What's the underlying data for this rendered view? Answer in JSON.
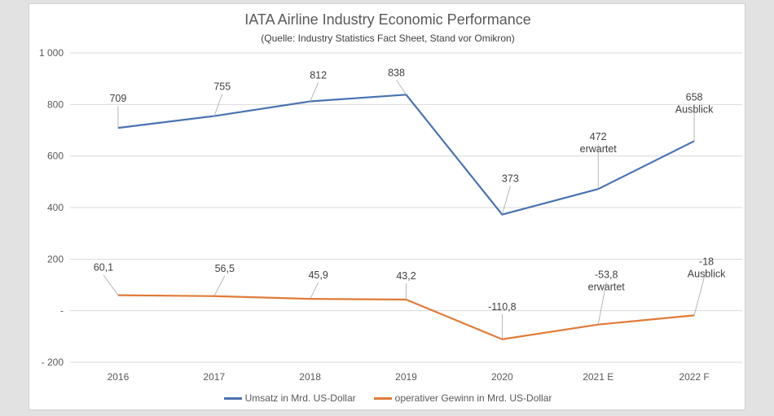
{
  "chart_data": {
    "type": "line",
    "title": "IATA Airline Industry Economic Performance",
    "subtitle": "(Quelle: Industry Statistics Fact Sheet, Stand vor Omikron)",
    "categories": [
      "2016",
      "2017",
      "2018",
      "2019",
      "2020",
      "2021 E",
      "2022 F"
    ],
    "ylim": [
      -200,
      1000
    ],
    "y_ticks": [
      {
        "value": 1000,
        "label": "1 000"
      },
      {
        "value": 800,
        "label": "800"
      },
      {
        "value": 600,
        "label": "600"
      },
      {
        "value": 400,
        "label": "400"
      },
      {
        "value": 200,
        "label": "200"
      },
      {
        "value": 0,
        "label": "-"
      },
      {
        "value": -200,
        "label": "- 200"
      }
    ],
    "grid": true,
    "legend_position": "bottom",
    "series": [
      {
        "name": "Umsatz in Mrd. US-Dollar",
        "color": "#4a72b0",
        "values": [
          709,
          755,
          812,
          838,
          373,
          472,
          658
        ],
        "labels": [
          "709",
          "755",
          "812",
          "838",
          "373",
          "472",
          "658"
        ],
        "label_notes": [
          "",
          "",
          "",
          "",
          "",
          "erwartet",
          "Ausblick"
        ]
      },
      {
        "name": "operativer Gewinn in Mrd. US-Dollar",
        "color": "#e07b39",
        "values": [
          60.1,
          56.5,
          45.9,
          43.2,
          -110.8,
          -53.8,
          -18
        ],
        "labels": [
          "60,1",
          "56,5",
          "45,9",
          "43,2",
          "-110,8",
          "-53,8",
          "-18"
        ],
        "label_notes": [
          "",
          "",
          "",
          "",
          "",
          "erwartet",
          "Ausblick"
        ]
      }
    ]
  }
}
